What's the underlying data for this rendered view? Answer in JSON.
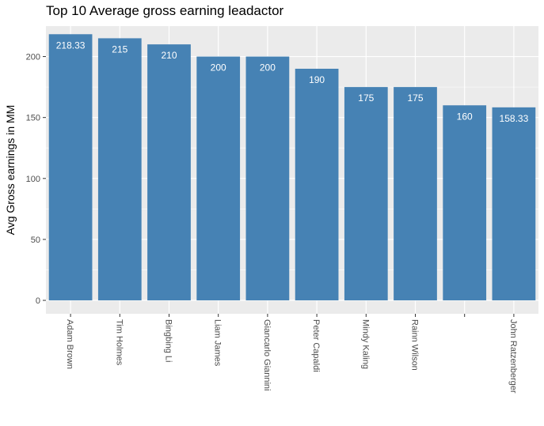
{
  "chart_data": {
    "type": "bar",
    "title": "Top 10 Average gross earning leadactor",
    "xlabel": "",
    "ylabel": "Avg Gross earnings in MM",
    "categories": [
      "Adam Brown",
      "Tim Holmes",
      "Bingbing Li",
      "Liam James",
      "Giancarlo Giannini",
      "Peter Capaldi",
      "Mindy Kaling",
      "Rainn Wilson",
      "",
      "John Ratzenberger"
    ],
    "values": [
      218.33,
      215,
      210,
      200,
      200,
      190,
      175,
      175,
      160,
      158.33
    ],
    "value_labels": [
      "218.33",
      "215",
      "210",
      "200",
      "200",
      "190",
      "175",
      "175",
      "160",
      "158.33"
    ],
    "yticks": [
      0,
      50,
      100,
      150,
      200
    ],
    "ylim": [
      -11,
      225
    ],
    "grid": true,
    "legend": "none",
    "colors": {
      "bar": "#4682B4",
      "panel": "#EBEBEB",
      "grid": "#FFFFFF",
      "text": "#4D4D4D",
      "value_label": "#FFFFFF"
    }
  }
}
